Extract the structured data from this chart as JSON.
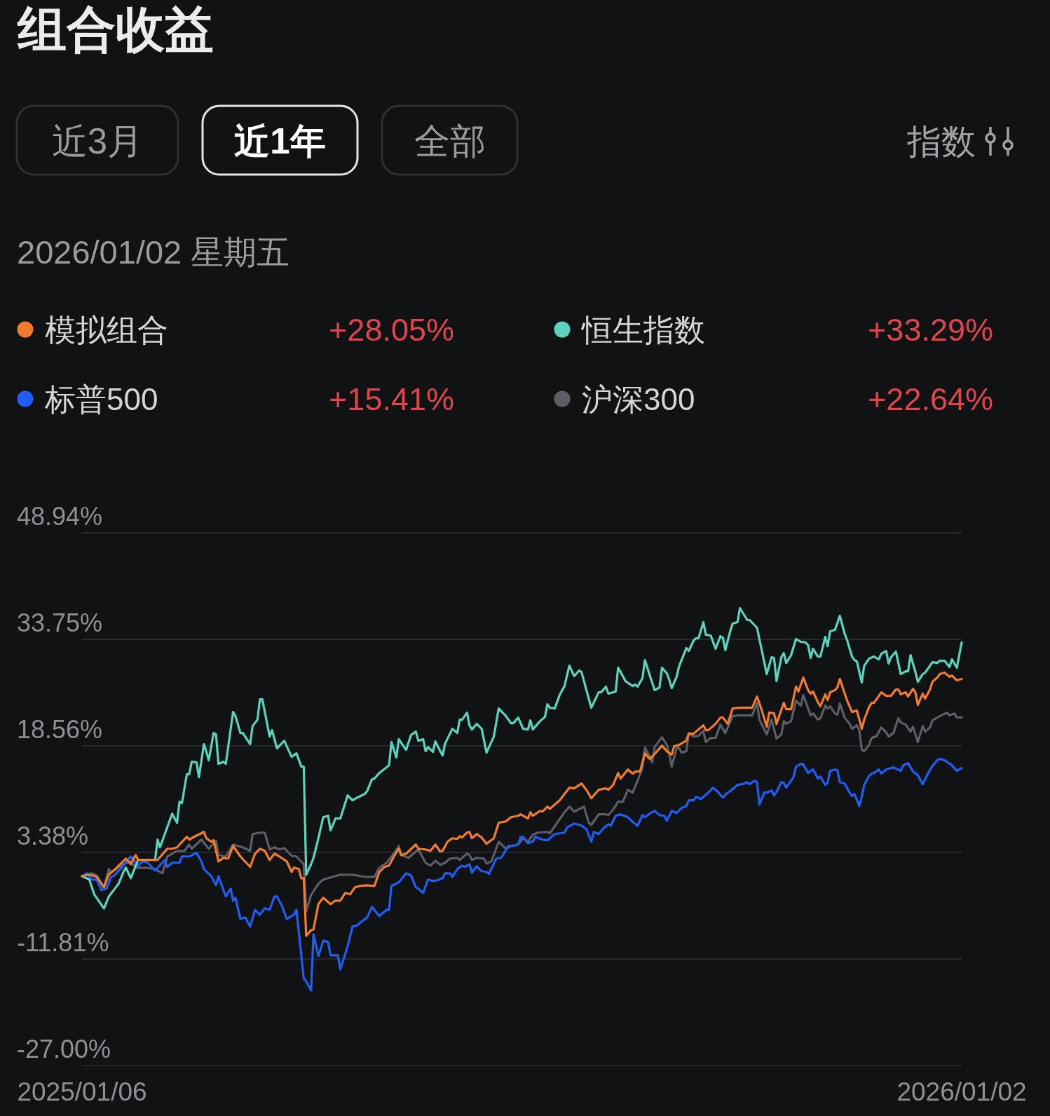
{
  "chart_data": {
    "type": "line",
    "title": "组合收益",
    "subtitle": "2026/01/02 星期五",
    "annotations": [
      "近3月",
      "近1年",
      "全部",
      "指数",
      "+28.05%",
      "+33.29%",
      "+15.41%",
      "+22.64%"
    ],
    "legend": "top",
    "grid": "y",
    "xlim": [
      "2025-01-06",
      "2026-01-02"
    ],
    "xticks": [
      {
        "value": "2025-01-06",
        "label": "2025/01/06"
      },
      {
        "value": "2026-01-02",
        "label": "2026/01/02"
      }
    ],
    "ylim": [
      -27.0,
      48.94
    ],
    "yticks": [
      {
        "value": 48.94,
        "label": "48.94%"
      },
      {
        "value": 33.75,
        "label": "33.75%"
      },
      {
        "value": 18.56,
        "label": "18.56%"
      },
      {
        "value": 3.38,
        "label": "3.38%"
      },
      {
        "value": -11.81,
        "label": "-11.81%"
      },
      {
        "value": -27.0,
        "label": "-27.00%"
      }
    ],
    "series": [
      {
        "name": "模拟组合",
        "color": "#f27b2d",
        "x": [
          "2025-01-06",
          "2025-01-09",
          "2025-01-12",
          "2025-01-15",
          "2025-01-17",
          "2025-01-19",
          "2025-01-24",
          "2025-01-26",
          "2025-01-28",
          "2025-01-29",
          "2025-02-06",
          "2025-02-10",
          "2025-02-12",
          "2025-02-14",
          "2025-02-18",
          "2025-02-19",
          "2025-02-21",
          "2025-02-25",
          "2025-02-26",
          "2025-02-28",
          "2025-03-01",
          "2025-03-03",
          "2025-03-05",
          "2025-03-07",
          "2025-03-09",
          "2025-03-12",
          "2025-03-16",
          "2025-03-18",
          "2025-03-20",
          "2025-03-22",
          "2025-03-24",
          "2025-03-26",
          "2025-03-28",
          "2025-03-31",
          "2025-04-02",
          "2025-04-03",
          "2025-04-05",
          "2025-04-06",
          "2025-04-07",
          "2025-04-08",
          "2025-04-10",
          "2025-04-11",
          "2025-04-13",
          "2025-04-15",
          "2025-04-18",
          "2025-04-20",
          "2025-04-22",
          "2025-04-24",
          "2025-04-26",
          "2025-04-28",
          "2025-04-30",
          "2025-05-03",
          "2025-05-06",
          "2025-05-08",
          "2025-05-10",
          "2025-05-12",
          "2025-05-14",
          "2025-05-16",
          "2025-05-17",
          "2025-05-19",
          "2025-05-23",
          "2025-05-24",
          "2025-05-27",
          "2025-05-29",
          "2025-05-31",
          "2025-06-02",
          "2025-06-03",
          "2025-06-05",
          "2025-06-07",
          "2025-06-09",
          "2025-06-10",
          "2025-06-11",
          "2025-06-13",
          "2025-06-14",
          "2025-06-15",
          "2025-06-17",
          "2025-06-19",
          "2025-06-21",
          "2025-06-24",
          "2025-06-26",
          "2025-06-29",
          "2025-07-01",
          "2025-07-04",
          "2025-07-05",
          "2025-07-08",
          "2025-07-09",
          "2025-07-10",
          "2025-07-13",
          "2025-07-14",
          "2025-07-16",
          "2025-07-17",
          "2025-07-21",
          "2025-07-23",
          "2025-07-25",
          "2025-07-27",
          "2025-07-30",
          "2025-08-01",
          "2025-08-03",
          "2025-08-06",
          "2025-08-09",
          "2025-08-10",
          "2025-08-12",
          "2025-08-14",
          "2025-08-15",
          "2025-08-18",
          "2025-08-20",
          "2025-08-21",
          "2025-08-23",
          "2025-08-25",
          "2025-08-27",
          "2025-08-30",
          "2025-09-01",
          "2025-09-03",
          "2025-09-05",
          "2025-09-06",
          "2025-09-08",
          "2025-09-11",
          "2025-09-12",
          "2025-09-14",
          "2025-09-18",
          "2025-09-19",
          "2025-09-20",
          "2025-09-23",
          "2025-09-25",
          "2025-09-26",
          "2025-09-28",
          "2025-09-30",
          "2025-10-03",
          "2025-10-08",
          "2025-10-10",
          "2025-10-12",
          "2025-10-14",
          "2025-10-15",
          "2025-10-17",
          "2025-10-18",
          "2025-10-21",
          "2025-10-22",
          "2025-10-24",
          "2025-10-26",
          "2025-10-27",
          "2025-10-29",
          "2025-10-31",
          "2025-11-01",
          "2025-11-02",
          "2025-11-04",
          "2025-11-05",
          "2025-11-07",
          "2025-11-08",
          "2025-11-09",
          "2025-11-11",
          "2025-11-12",
          "2025-11-13",
          "2025-11-15",
          "2025-11-16",
          "2025-11-18",
          "2025-11-20",
          "2025-11-22",
          "2025-11-23",
          "2025-11-25",
          "2025-11-26",
          "2025-11-27",
          "2025-11-30",
          "2025-12-02",
          "2025-12-04",
          "2025-12-06",
          "2025-12-07",
          "2025-12-08",
          "2025-12-10",
          "2025-12-11",
          "2025-12-13",
          "2025-12-14",
          "2025-12-15",
          "2025-12-17",
          "2025-12-18",
          "2025-12-20",
          "2025-12-21",
          "2025-12-23",
          "2025-12-24",
          "2025-12-26",
          "2025-12-28",
          "2025-12-29",
          "2025-12-31",
          "2026-01-02"
        ],
        "values": [
          0.0,
          0.2,
          -0.1,
          -1.6,
          0.2,
          0.8,
          2.5,
          1.7,
          3.0,
          2.3,
          2.3,
          3.9,
          3.9,
          4.1,
          5.6,
          5.2,
          5.6,
          6.3,
          5.4,
          4.9,
          5.1,
          2.1,
          2.6,
          2.5,
          4.3,
          2.8,
          1.3,
          3.2,
          3.9,
          3.6,
          2.3,
          3.2,
          2.8,
          2.1,
          0.6,
          1.2,
          1.0,
          -0.3,
          -0.3,
          -8.5,
          -7.7,
          -7.6,
          -4.0,
          -3.1,
          -4.0,
          -3.5,
          -3.5,
          -2.4,
          -2.6,
          -1.6,
          -1.4,
          -1.3,
          -1.4,
          0.6,
          1.3,
          1.5,
          2.8,
          3.9,
          3.0,
          3.2,
          4.5,
          3.9,
          3.8,
          3.6,
          4.5,
          3.5,
          3.6,
          4.9,
          5.4,
          5.3,
          5.7,
          5.5,
          6.2,
          6.3,
          5.4,
          6.0,
          5.5,
          4.6,
          5.4,
          7.6,
          7.8,
          8.4,
          8.6,
          8.8,
          8.2,
          9.1,
          8.6,
          9.3,
          9.2,
          9.9,
          9.6,
          10.8,
          11.7,
          12.6,
          12.5,
          13.2,
          12.3,
          11.1,
          12.3,
          12.5,
          12.3,
          13.0,
          14.7,
          13.9,
          15.2,
          14.6,
          14.9,
          14.9,
          17.5,
          16.7,
          17.8,
          18.6,
          17.8,
          17.3,
          18.5,
          18.7,
          19.3,
          20.3,
          20.3,
          21.5,
          20.8,
          20.8,
          21.7,
          22.6,
          22.6,
          21.7,
          23.9,
          24.0,
          24.0,
          25.6,
          23.6,
          21.3,
          23.3,
          23.2,
          21.7,
          24.7,
          23.8,
          23.8,
          27.0,
          26.3,
          28.3,
          26.5,
          26.0,
          26.3,
          24.8,
          24.2,
          25.9,
          25.1,
          26.2,
          26.5,
          26.9,
          28.1,
          26.0,
          25.0,
          23.4,
          23.6,
          21.0,
          22.3,
          24.1,
          24.7,
          24.7,
          26.2,
          25.7,
          25.7,
          26.6,
          26.6,
          25.9,
          26.2,
          25.6,
          26.7,
          26.2,
          24.4,
          26.0,
          25.3,
          26.6,
          27.7,
          28.3,
          28.8,
          29.0,
          28.4,
          28.6,
          27.9,
          28.1
        ]
      },
      {
        "name": "恒生指数",
        "color": "#5ad3bf",
        "x": [
          "2025-01-06",
          "2025-01-09",
          "2025-01-11",
          "2025-01-15",
          "2025-01-17",
          "2025-01-21",
          "2025-01-23",
          "2025-01-24",
          "2025-01-26",
          "2025-01-29",
          "2025-02-05",
          "2025-02-06",
          "2025-02-07",
          "2025-02-12",
          "2025-02-14",
          "2025-02-15",
          "2025-02-16",
          "2025-02-18",
          "2025-02-19",
          "2025-02-20",
          "2025-02-22",
          "2025-02-23",
          "2025-02-25",
          "2025-02-26",
          "2025-02-27",
          "2025-03-01",
          "2025-03-02",
          "2025-03-03",
          "2025-03-05",
          "2025-03-06",
          "2025-03-09",
          "2025-03-10",
          "2025-03-12",
          "2025-03-13",
          "2025-03-16",
          "2025-03-17",
          "2025-03-19",
          "2025-03-20",
          "2025-03-21",
          "2025-03-24",
          "2025-03-25",
          "2025-03-27",
          "2025-03-30",
          "2025-04-02",
          "2025-04-04",
          "2025-04-06",
          "2025-04-07",
          "2025-04-08",
          "2025-04-10",
          "2025-04-11",
          "2025-04-13",
          "2025-04-15",
          "2025-04-17",
          "2025-04-18",
          "2025-04-20",
          "2025-04-22",
          "2025-04-25",
          "2025-04-27",
          "2025-04-29",
          "2025-05-02",
          "2025-05-03",
          "2025-05-05",
          "2025-05-06",
          "2025-05-08",
          "2025-05-12",
          "2025-05-13",
          "2025-05-15",
          "2025-05-16",
          "2025-05-19",
          "2025-05-21",
          "2025-05-23",
          "2025-05-24",
          "2025-05-26",
          "2025-05-27",
          "2025-05-28",
          "2025-05-30",
          "2025-05-31",
          "2025-06-02",
          "2025-06-03",
          "2025-06-04",
          "2025-06-07",
          "2025-06-09",
          "2025-06-10",
          "2025-06-11",
          "2025-06-13",
          "2025-06-14",
          "2025-06-15",
          "2025-06-17",
          "2025-06-19",
          "2025-06-21",
          "2025-06-24",
          "2025-06-26",
          "2025-06-29",
          "2025-07-01",
          "2025-07-02",
          "2025-07-04",
          "2025-07-06",
          "2025-07-08",
          "2025-07-09",
          "2025-07-10",
          "2025-07-13",
          "2025-07-15",
          "2025-07-16",
          "2025-07-17",
          "2025-07-19",
          "2025-07-21",
          "2025-07-23",
          "2025-07-25",
          "2025-07-27",
          "2025-07-29",
          "2025-07-30",
          "2025-08-01",
          "2025-08-03",
          "2025-08-06",
          "2025-08-07",
          "2025-08-09",
          "2025-08-10",
          "2025-08-13",
          "2025-08-14",
          "2025-08-15",
          "2025-08-17",
          "2025-08-20",
          "2025-08-21",
          "2025-08-22",
          "2025-08-24",
          "2025-08-25",
          "2025-08-27",
          "2025-08-29",
          "2025-08-31",
          "2025-09-01",
          "2025-09-03",
          "2025-09-04",
          "2025-09-05",
          "2025-09-07",
          "2025-09-08",
          "2025-09-11",
          "2025-09-12",
          "2025-09-14",
          "2025-09-15",
          "2025-09-16",
          "2025-09-18",
          "2025-09-19",
          "2025-09-21",
          "2025-09-23",
          "2025-09-25",
          "2025-09-26",
          "2025-09-27",
          "2025-09-29",
          "2025-09-30",
          "2025-10-02",
          "2025-10-03",
          "2025-10-06",
          "2025-10-07",
          "2025-10-10",
          "2025-10-12",
          "2025-10-14",
          "2025-10-16",
          "2025-10-17",
          "2025-10-18",
          "2025-10-20",
          "2025-10-21",
          "2025-10-22",
          "2025-10-24",
          "2025-10-26",
          "2025-10-28",
          "2025-10-30",
          "2025-10-31",
          "2025-11-01",
          "2025-11-02",
          "2025-11-04",
          "2025-11-05",
          "2025-11-07",
          "2025-11-08",
          "2025-11-09",
          "2025-11-11",
          "2025-11-13",
          "2025-11-15",
          "2025-11-16",
          "2025-11-18",
          "2025-11-19",
          "2025-11-20",
          "2025-11-22",
          "2025-11-23",
          "2025-11-25",
          "2025-11-27",
          "2025-11-29",
          "2025-11-30",
          "2025-12-02",
          "2025-12-03",
          "2025-12-04",
          "2025-12-06",
          "2025-12-08",
          "2025-12-10",
          "2025-12-11",
          "2025-12-12",
          "2025-12-14",
          "2025-12-15",
          "2025-12-17",
          "2025-12-18",
          "2025-12-20",
          "2025-12-21",
          "2025-12-23",
          "2025-12-24",
          "2025-12-26",
          "2025-12-28",
          "2025-12-29",
          "2025-12-31",
          "2026-01-02"
        ],
        "values": [
          0.0,
          -0.5,
          -2.6,
          -4.6,
          -2.9,
          -1.1,
          0.6,
          1.2,
          -0.3,
          2.3,
          2.3,
          5.2,
          4.1,
          8.9,
          7.6,
          10.6,
          10.4,
          14.5,
          14.5,
          16.3,
          16.2,
          14.1,
          18.8,
          17.8,
          16.5,
          20.4,
          20.2,
          16.0,
          16.3,
          16.0,
          23.4,
          22.8,
          20.4,
          20.4,
          18.8,
          21.4,
          22.3,
          25.2,
          25.2,
          19.9,
          20.8,
          18.2,
          19.3,
          17.0,
          17.5,
          15.6,
          15.6,
          0.2,
          1.7,
          2.6,
          5.4,
          8.4,
          8.6,
          6.5,
          8.2,
          8.2,
          11.5,
          10.8,
          11.2,
          11.7,
          12.1,
          13.8,
          13.9,
          14.7,
          15.8,
          19.1,
          16.9,
          19.5,
          18.0,
          20.1,
          20.6,
          19.3,
          19.5,
          17.8,
          18.4,
          17.7,
          19.2,
          17.8,
          17.2,
          18.9,
          21.0,
          20.4,
          22.3,
          22.3,
          23.3,
          21.5,
          20.9,
          21.7,
          21.0,
          17.6,
          19.9,
          23.9,
          22.8,
          21.8,
          21.8,
          22.6,
          21.0,
          20.9,
          22.2,
          20.9,
          22.1,
          22.7,
          24.5,
          24.0,
          23.9,
          25.8,
          27.1,
          30.0,
          28.5,
          29.3,
          29.1,
          26.5,
          24.0,
          26.2,
          26.2,
          27.0,
          26.0,
          26.3,
          29.7,
          29.1,
          27.8,
          27.1,
          27.3,
          27.0,
          28.2,
          30.8,
          28.6,
          26.5,
          26.9,
          29.7,
          28.9,
          28.0,
          26.8,
          28.4,
          29.9,
          32.5,
          32.1,
          33.6,
          33.9,
          33.9,
          36.2,
          34.4,
          34.3,
          32.4,
          34.2,
          34.0,
          32.2,
          34.9,
          36.0,
          36.2,
          38.2,
          36.5,
          36.5,
          35.4,
          32.1,
          28.8,
          31.2,
          31.1,
          27.8,
          31.2,
          31.8,
          30.4,
          31.5,
          33.8,
          33.4,
          33.3,
          32.9,
          31.1,
          32.4,
          31.3,
          31.3,
          34.1,
          32.8,
          34.9,
          35.1,
          37.1,
          34.5,
          33.6,
          31.3,
          30.8,
          30.6,
          27.6,
          30.0,
          31.0,
          31.3,
          30.9,
          31.7,
          32.1,
          30.3,
          31.2,
          32.0,
          28.8,
          29.2,
          29.2,
          31.5,
          29.1,
          27.7,
          28.8,
          29.0,
          30.0,
          30.5,
          30.4,
          30.7,
          30.7,
          29.8,
          30.9,
          29.7,
          33.3
        ]
      },
      {
        "name": "标普500",
        "color": "#1f5ef4",
        "x": [
          "2025-01-06",
          "2025-01-08",
          "2025-01-10",
          "2025-01-12",
          "2025-01-14",
          "2025-01-16",
          "2025-01-18",
          "2025-01-19",
          "2025-01-23",
          "2025-01-26",
          "2025-01-29",
          "2025-01-31",
          "2025-02-02",
          "2025-02-05",
          "2025-02-09",
          "2025-02-10",
          "2025-02-12",
          "2025-02-15",
          "2025-02-16",
          "2025-02-19",
          "2025-02-22",
          "2025-02-24",
          "2025-02-25",
          "2025-02-28",
          "2025-03-02",
          "2025-03-03",
          "2025-03-06",
          "2025-03-08",
          "2025-03-09",
          "2025-03-10",
          "2025-03-12",
          "2025-03-14",
          "2025-03-16",
          "2025-03-18",
          "2025-03-20",
          "2025-03-22",
          "2025-03-24",
          "2025-03-26",
          "2025-03-27",
          "2025-03-29",
          "2025-03-31",
          "2025-04-03",
          "2025-04-04",
          "2025-04-07",
          "2025-04-08",
          "2025-04-10",
          "2025-04-11",
          "2025-04-13",
          "2025-04-15",
          "2025-04-17",
          "2025-04-18",
          "2025-04-21",
          "2025-04-22",
          "2025-04-25",
          "2025-04-27",
          "2025-04-29",
          "2025-05-01",
          "2025-05-03",
          "2025-05-05",
          "2025-05-08",
          "2025-05-11",
          "2025-05-12",
          "2025-05-13",
          "2025-05-16",
          "2025-05-19",
          "2025-05-21",
          "2025-05-23",
          "2025-05-24",
          "2025-05-26",
          "2025-05-28",
          "2025-05-30",
          "2025-06-01",
          "2025-06-03",
          "2025-06-04",
          "2025-06-06",
          "2025-06-07",
          "2025-06-09",
          "2025-06-11",
          "2025-06-12",
          "2025-06-14",
          "2025-06-15",
          "2025-06-17",
          "2025-06-19",
          "2025-06-21",
          "2025-06-22",
          "2025-06-25",
          "2025-06-27",
          "2025-06-30",
          "2025-07-02",
          "2025-07-04",
          "2025-07-05",
          "2025-07-06",
          "2025-07-08",
          "2025-07-10",
          "2025-07-11",
          "2025-07-14",
          "2025-07-16",
          "2025-07-19",
          "2025-07-23",
          "2025-07-24",
          "2025-07-27",
          "2025-07-30",
          "2025-08-01",
          "2025-08-03",
          "2025-08-04",
          "2025-08-06",
          "2025-08-08",
          "2025-08-10",
          "2025-08-11",
          "2025-08-13",
          "2025-08-15",
          "2025-08-18",
          "2025-08-20",
          "2025-08-22",
          "2025-08-24",
          "2025-08-25",
          "2025-08-27",
          "2025-08-29",
          "2025-08-31",
          "2025-09-02",
          "2025-09-03",
          "2025-09-05",
          "2025-09-07",
          "2025-09-09",
          "2025-09-11",
          "2025-09-12",
          "2025-09-14",
          "2025-09-15",
          "2025-09-17",
          "2025-09-20",
          "2025-09-22",
          "2025-09-24",
          "2025-09-26",
          "2025-09-28",
          "2025-09-30",
          "2025-10-02",
          "2025-10-04",
          "2025-10-06",
          "2025-10-07",
          "2025-10-09",
          "2025-10-10",
          "2025-10-11",
          "2025-10-13",
          "2025-10-14",
          "2025-10-16",
          "2025-10-17",
          "2025-10-18",
          "2025-10-20",
          "2025-10-21",
          "2025-10-22",
          "2025-10-25",
          "2025-10-26",
          "2025-10-28",
          "2025-10-29",
          "2025-10-31",
          "2025-11-01",
          "2025-11-02",
          "2025-11-04",
          "2025-11-05",
          "2025-11-07",
          "2025-11-08",
          "2025-11-09",
          "2025-11-11",
          "2025-11-12",
          "2025-11-13",
          "2025-11-15",
          "2025-11-17",
          "2025-11-18",
          "2025-11-19",
          "2025-11-21",
          "2025-11-22",
          "2025-11-23",
          "2025-11-25",
          "2025-11-26",
          "2025-11-27",
          "2025-11-29",
          "2025-11-30",
          "2025-12-02",
          "2025-12-05",
          "2025-12-08",
          "2025-12-09",
          "2025-12-11",
          "2025-12-13",
          "2025-12-15",
          "2025-12-17",
          "2025-12-19",
          "2025-12-21",
          "2025-12-23",
          "2025-12-24",
          "2025-12-26",
          "2025-12-29",
          "2025-12-31",
          "2026-01-02"
        ],
        "values": [
          0.0,
          0.4,
          -0.5,
          -0.5,
          -2.0,
          -1.8,
          -0.1,
          0.0,
          1.5,
          2.8,
          1.5,
          2.1,
          1.9,
          0.8,
          2.3,
          1.3,
          1.9,
          1.9,
          2.8,
          2.8,
          3.3,
          2.1,
          1.0,
          0.0,
          -1.3,
          0.0,
          -2.9,
          -1.8,
          -3.5,
          -3.1,
          -6.1,
          -5.9,
          -7.2,
          -4.8,
          -5.5,
          -4.6,
          -4.8,
          -2.9,
          -2.9,
          -4.2,
          -6.1,
          -5.5,
          -4.8,
          -14.6,
          -15.0,
          -16.3,
          -8.3,
          -11.4,
          -9.2,
          -9.4,
          -11.3,
          -11.3,
          -13.3,
          -10.0,
          -7.2,
          -7.0,
          -6.4,
          -5.9,
          -4.4,
          -5.7,
          -4.8,
          -4.8,
          -1.4,
          -0.9,
          0.4,
          0.1,
          -1.6,
          -1.8,
          -2.4,
          -0.5,
          -0.7,
          -0.6,
          -0.3,
          0.4,
          0.4,
          -0.1,
          1.0,
          1.5,
          1.3,
          1.7,
          0.5,
          1.4,
          0.7,
          0.6,
          0.3,
          2.5,
          2.6,
          4.3,
          4.3,
          4.5,
          5.6,
          5.6,
          4.7,
          4.9,
          5.6,
          5.2,
          5.1,
          6.0,
          6.2,
          6.9,
          7.5,
          7.2,
          6.7,
          4.9,
          6.3,
          6.0,
          6.8,
          7.4,
          7.2,
          8.6,
          8.8,
          8.4,
          7.7,
          7.2,
          8.7,
          8.4,
          8.9,
          9.3,
          8.7,
          8.6,
          7.9,
          9.3,
          9.0,
          9.7,
          10.0,
          10.8,
          10.8,
          11.3,
          11.0,
          11.9,
          12.6,
          12.0,
          11.2,
          11.9,
          12.4,
          13.0,
          13.1,
          13.4,
          13.1,
          13.6,
          13.4,
          10.2,
          11.9,
          11.9,
          12.2,
          11.5,
          12.0,
          13.4,
          13.3,
          12.6,
          14.1,
          15.6,
          16.0,
          15.9,
          14.7,
          15.0,
          15.2,
          13.9,
          14.2,
          13.0,
          13.3,
          15.0,
          15.2,
          15.1,
          13.4,
          13.2,
          11.9,
          11.4,
          11.7,
          10.0,
          11.3,
          13.0,
          14.3,
          14.6,
          14.7,
          15.2,
          14.6,
          15.2,
          15.5,
          15.0,
          15.8,
          16.1,
          14.9,
          14.4,
          13.1,
          14.5,
          15.7,
          16.5,
          16.7,
          16.5,
          15.8,
          15.0,
          15.4
        ]
      },
      {
        "name": "沪深300",
        "color": "#5b5e66",
        "x": [
          "2025-01-06",
          "2025-01-10",
          "2025-01-12",
          "2025-01-15",
          "2025-01-17",
          "2025-01-18",
          "2025-01-20",
          "2025-01-23",
          "2025-01-26",
          "2025-01-28",
          "2025-02-01",
          "2025-02-05",
          "2025-02-08",
          "2025-02-10",
          "2025-02-14",
          "2025-02-17",
          "2025-02-19",
          "2025-02-20",
          "2025-02-24",
          "2025-02-27",
          "2025-03-02",
          "2025-03-03",
          "2025-03-06",
          "2025-03-09",
          "2025-03-13",
          "2025-03-16",
          "2025-03-17",
          "2025-03-20",
          "2025-03-22",
          "2025-03-24",
          "2025-03-26",
          "2025-03-28",
          "2025-03-30",
          "2025-04-02",
          "2025-04-04",
          "2025-04-07",
          "2025-04-08",
          "2025-04-10",
          "2025-04-13",
          "2025-04-15",
          "2025-04-19",
          "2025-04-22",
          "2025-04-27",
          "2025-05-02",
          "2025-05-06",
          "2025-05-08",
          "2025-05-11",
          "2025-05-14",
          "2025-05-16",
          "2025-05-17",
          "2025-05-20",
          "2025-05-24",
          "2025-05-27",
          "2025-05-29",
          "2025-05-31",
          "2025-06-02",
          "2025-06-04",
          "2025-06-06",
          "2025-06-09",
          "2025-06-10",
          "2025-06-13",
          "2025-06-14",
          "2025-06-15",
          "2025-06-17",
          "2025-06-20",
          "2025-06-21",
          "2025-06-23",
          "2025-06-26",
          "2025-06-29",
          "2025-07-01",
          "2025-07-04",
          "2025-07-06",
          "2025-07-08",
          "2025-07-10",
          "2025-07-12",
          "2025-07-16",
          "2025-07-17",
          "2025-07-20",
          "2025-07-23",
          "2025-07-25",
          "2025-07-27",
          "2025-07-31",
          "2025-08-02",
          "2025-08-03",
          "2025-08-06",
          "2025-08-09",
          "2025-08-10",
          "2025-08-12",
          "2025-08-14",
          "2025-08-16",
          "2025-08-18",
          "2025-08-20",
          "2025-08-22",
          "2025-08-24",
          "2025-08-25",
          "2025-08-26",
          "2025-08-28",
          "2025-08-29",
          "2025-09-01",
          "2025-09-03",
          "2025-09-04",
          "2025-09-05",
          "2025-09-07",
          "2025-09-08",
          "2025-09-09",
          "2025-09-11",
          "2025-09-12",
          "2025-09-14",
          "2025-09-16",
          "2025-09-18",
          "2025-09-19",
          "2025-09-21",
          "2025-09-23",
          "2025-09-25",
          "2025-09-27",
          "2025-09-30",
          "2025-10-02",
          "2025-10-08",
          "2025-10-10",
          "2025-10-11",
          "2025-10-14",
          "2025-10-16",
          "2025-10-18",
          "2025-10-20",
          "2025-10-21",
          "2025-10-22",
          "2025-10-24",
          "2025-10-26",
          "2025-10-28",
          "2025-10-29",
          "2025-11-01",
          "2025-11-02",
          "2025-11-04",
          "2025-11-05",
          "2025-11-07",
          "2025-11-08",
          "2025-11-09",
          "2025-11-11",
          "2025-11-12",
          "2025-11-13",
          "2025-11-15",
          "2025-11-17",
          "2025-11-18",
          "2025-11-20",
          "2025-11-21",
          "2025-11-22",
          "2025-11-23",
          "2025-11-25",
          "2025-11-26",
          "2025-11-28",
          "2025-11-30",
          "2025-12-02",
          "2025-12-03",
          "2025-12-05",
          "2025-12-07",
          "2025-12-08",
          "2025-12-10",
          "2025-12-12",
          "2025-12-13",
          "2025-12-14",
          "2025-12-15",
          "2025-12-17",
          "2025-12-18",
          "2025-12-20",
          "2025-12-21",
          "2025-12-24",
          "2025-12-27",
          "2025-12-28",
          "2025-12-30",
          "2025-12-31",
          "2026-01-02"
        ],
        "values": [
          0.0,
          0.4,
          0.1,
          -1.6,
          1.0,
          0.6,
          1.0,
          1.7,
          2.1,
          1.2,
          1.2,
          1.0,
          0.4,
          2.8,
          3.6,
          3.6,
          4.5,
          3.9,
          5.2,
          3.9,
          5.0,
          3.0,
          2.8,
          4.5,
          4.1,
          3.6,
          6.0,
          6.2,
          6.2,
          3.8,
          4.1,
          3.8,
          4.0,
          2.9,
          2.8,
          1.7,
          -5.0,
          -2.7,
          -1.1,
          -0.5,
          -0.1,
          0.2,
          0.2,
          -0.1,
          -0.1,
          1.2,
          1.9,
          3.2,
          4.3,
          3.0,
          2.6,
          3.8,
          1.9,
          1.5,
          2.2,
          1.6,
          1.9,
          2.5,
          2.6,
          2.3,
          3.2,
          3.0,
          2.3,
          2.6,
          2.5,
          1.8,
          2.1,
          4.9,
          3.9,
          4.3,
          4.5,
          5.4,
          4.9,
          5.9,
          6.2,
          6.3,
          6.1,
          7.6,
          9.1,
          9.9,
          9.2,
          9.9,
          7.6,
          7.3,
          8.8,
          8.8,
          8.7,
          9.5,
          10.6,
          10.6,
          12.3,
          11.9,
          13.6,
          15.4,
          18.3,
          17.7,
          16.2,
          18.4,
          19.8,
          18.7,
          17.3,
          15.6,
          18.2,
          18.3,
          17.6,
          17.8,
          20.4,
          19.9,
          20.0,
          20.7,
          19.1,
          19.7,
          19.7,
          21.6,
          20.4,
          22.8,
          22.9,
          22.9,
          24.7,
          22.3,
          20.2,
          22.3,
          19.6,
          20.2,
          22.1,
          21.7,
          22.1,
          25.0,
          24.3,
          25.8,
          22.9,
          23.2,
          22.3,
          22.5,
          24.3,
          23.9,
          24.2,
          23.2,
          23.0,
          24.6,
          22.6,
          21.7,
          21.0,
          21.5,
          20.8,
          18.0,
          17.8,
          18.7,
          19.7,
          19.9,
          21.2,
          20.5,
          19.9,
          20.4,
          22.5,
          21.9,
          21.6,
          20.6,
          21.3,
          20.2,
          19.1,
          21.4,
          20.6,
          21.2,
          22.2,
          22.8,
          23.3,
          22.9,
          23.2,
          22.6,
          22.6
        ]
      }
    ]
  }
}
